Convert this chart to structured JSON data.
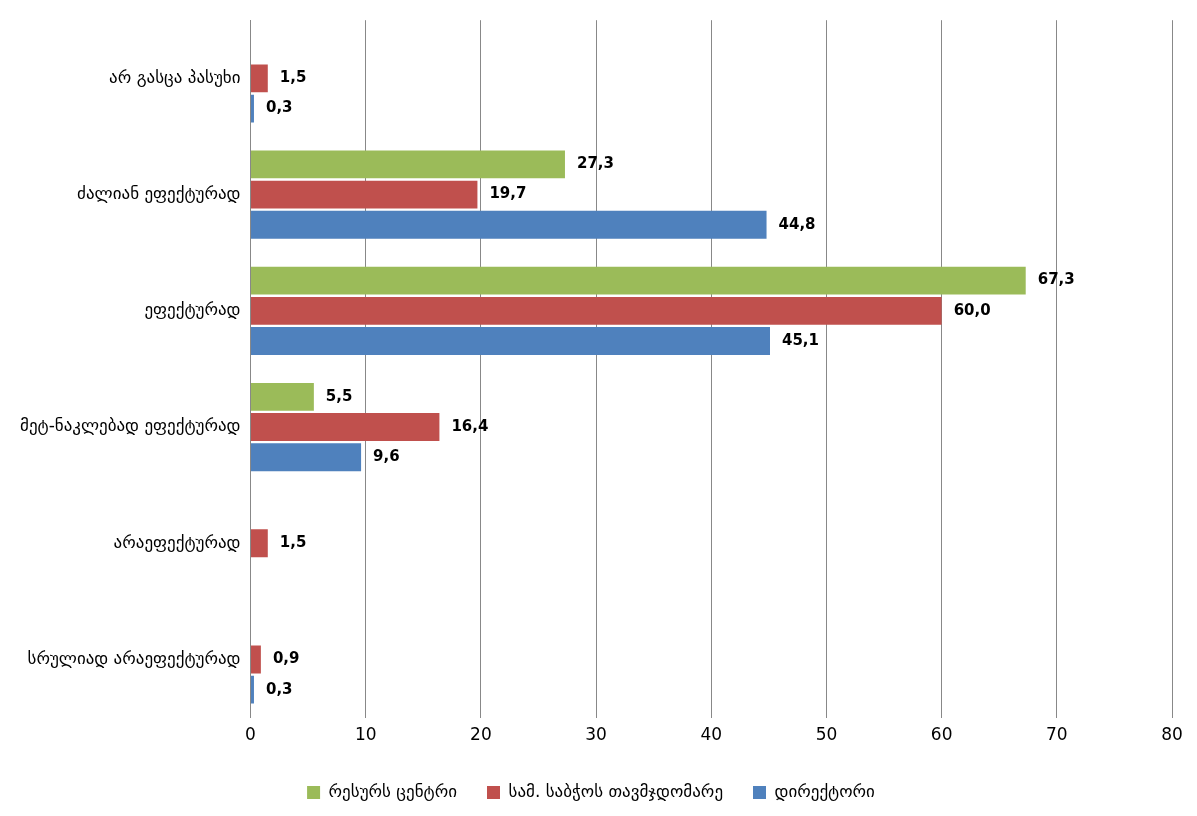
{
  "chart_data": {
    "type": "bar",
    "orientation": "horizontal",
    "categories": [
      "არ გასცა პასუხი",
      "ძალიან ეფექტურად",
      "ეფექტურად",
      "მეტ-ნაკლებად ეფექტურად",
      "არაეფექტურად",
      "სრულიად არაეფექტურად"
    ],
    "series": [
      {
        "name": "რესურს ცენტრი",
        "color": "#9bbb59",
        "values": [
          null,
          27.3,
          67.3,
          5.5,
          null,
          null
        ],
        "value_labels": [
          null,
          "27,3",
          "67,3",
          "5,5",
          null,
          null
        ]
      },
      {
        "name": "სამ. საბჭოს თავმჯდომარე",
        "color": "#c0504d",
        "values": [
          1.5,
          19.7,
          60.0,
          16.4,
          1.5,
          0.9
        ],
        "value_labels": [
          "1,5",
          "19,7",
          "60,0",
          "16,4",
          "1,5",
          "0,9"
        ]
      },
      {
        "name": "დირექტორი",
        "color": "#4f81bd",
        "values": [
          0.3,
          44.8,
          45.1,
          9.6,
          null,
          0.3
        ],
        "value_labels": [
          "0,3",
          "44,8",
          "45,1",
          "9,6",
          null,
          "0,3"
        ]
      }
    ],
    "xlim": [
      0,
      80
    ],
    "xticks": [
      0,
      10,
      20,
      30,
      40,
      50,
      60,
      70,
      80
    ],
    "grid": "x",
    "legend": "bottom"
  }
}
